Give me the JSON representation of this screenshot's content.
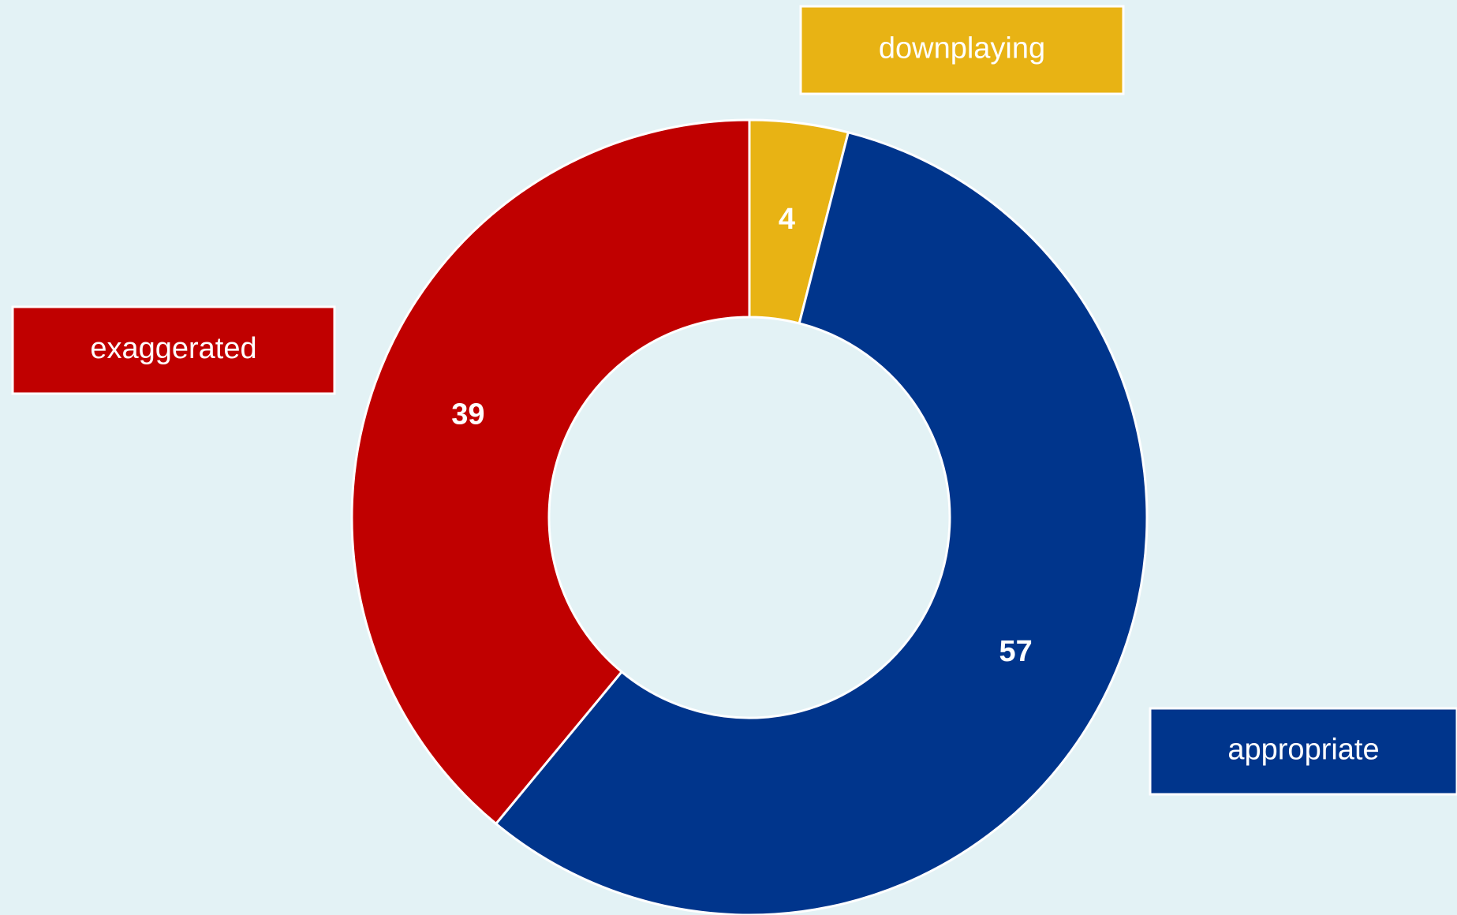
{
  "chart_data": {
    "type": "donut",
    "categories": [
      "downplaying",
      "appropriate",
      "exaggerated"
    ],
    "values": [
      4,
      57,
      39
    ],
    "colors": [
      "#e8b314",
      "#00358c",
      "#c00000"
    ]
  }
}
